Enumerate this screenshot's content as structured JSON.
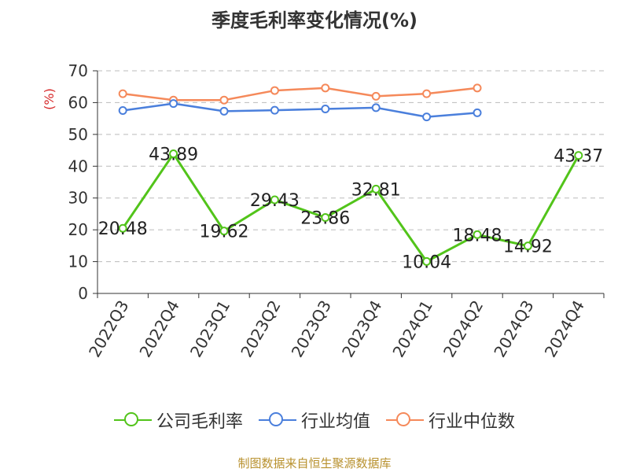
{
  "title": "季度毛利率变化情况(%)",
  "source": "制图数据来自恒生聚源数据库",
  "chart_data": {
    "type": "line",
    "title": "季度毛利率变化情况(%)",
    "ylabel": "(%)",
    "ylim": [
      0,
      70
    ],
    "yticks": [
      0,
      10,
      20,
      30,
      40,
      50,
      60,
      70
    ],
    "grid": true,
    "legend_position": "bottom",
    "categories": [
      "2022Q3",
      "2022Q4",
      "2023Q1",
      "2023Q2",
      "2023Q3",
      "2023Q4",
      "2024Q1",
      "2024Q2",
      "2024Q3",
      "2024Q4"
    ],
    "series": [
      {
        "name": "公司毛利率",
        "color": "#52c41a",
        "values": [
          20.48,
          43.89,
          19.62,
          29.43,
          23.86,
          32.81,
          10.04,
          18.48,
          14.92,
          43.37
        ],
        "labels": [
          "20.48",
          "43.89",
          "19.62",
          "29.43",
          "23.86",
          "32.81",
          "10.04",
          "18.48",
          "14.92",
          "43.37"
        ]
      },
      {
        "name": "行业均值",
        "color": "#4a7fdc",
        "values": [
          57.5,
          59.7,
          57.3,
          57.6,
          58.0,
          58.4,
          55.5,
          56.8,
          null,
          null
        ]
      },
      {
        "name": "行业中位数",
        "color": "#f5895a",
        "values": [
          62.8,
          60.8,
          60.8,
          63.8,
          64.6,
          62.0,
          62.8,
          64.6,
          null,
          null
        ]
      }
    ]
  }
}
